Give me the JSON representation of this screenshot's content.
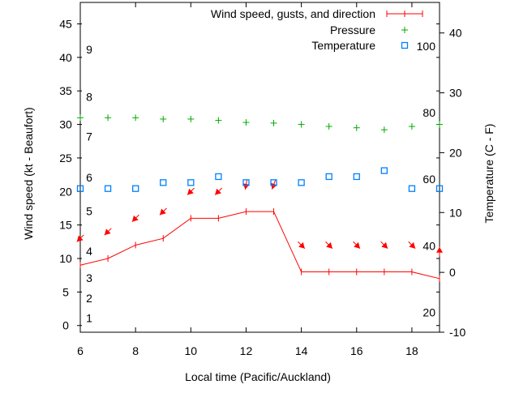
{
  "chart_data": {
    "type": "line",
    "xlabel": "Local time (Pacific/Auckland)",
    "ylabel": "Wind speed (kt - Beaufort)",
    "y2label": "Temperature (C - F)",
    "xlim": [
      6,
      19
    ],
    "ylim": [
      -1,
      48.2
    ],
    "y2lim": [
      -10,
      45.1
    ],
    "x_ticks": [
      6,
      8,
      10,
      12,
      14,
      16,
      18
    ],
    "y_ticks": [
      0,
      5,
      10,
      15,
      20,
      25,
      30,
      35,
      40,
      45
    ],
    "y2_ticks": [
      -10,
      0,
      10,
      20,
      30,
      40
    ],
    "beaufort_labels": [
      {
        "label": "1",
        "kt": 1.1
      },
      {
        "label": "2",
        "kt": 4.1
      },
      {
        "label": "3",
        "kt": 7.1
      },
      {
        "label": "4",
        "kt": 11.1
      },
      {
        "label": "5",
        "kt": 17.1
      },
      {
        "label": "6",
        "kt": 22.1
      },
      {
        "label": "7",
        "kt": 28.2
      },
      {
        "label": "8",
        "kt": 34.1
      },
      {
        "label": "9",
        "kt": 41.2
      }
    ],
    "fahrenheit_labels": [
      {
        "label": "100",
        "f": 100
      },
      {
        "label": "80",
        "f": 80
      },
      {
        "label": "60",
        "f": 60
      },
      {
        "label": "40",
        "f": 40
      },
      {
        "label": "20",
        "f": 20
      }
    ],
    "legend": {
      "placement": "top-right",
      "entries": [
        "Wind speed, gusts, and direction",
        "Pressure",
        "Temperature"
      ]
    },
    "x": [
      6,
      7,
      8,
      9,
      10,
      11,
      12,
      13,
      14,
      15,
      16,
      17,
      18,
      19
    ],
    "series": [
      {
        "name": "Wind speed, gusts, and direction",
        "axis": "y",
        "color": "#ff0000",
        "values": [
          9,
          10,
          12,
          13,
          16,
          16,
          17,
          17,
          8,
          8,
          8,
          8,
          8,
          7
        ],
        "gusts": [
          13,
          14,
          16,
          17,
          20,
          20,
          21,
          21,
          12,
          12,
          12,
          12,
          12,
          11
        ],
        "direction_deg": [
          45,
          45,
          45,
          45,
          45,
          45,
          10,
          20,
          315,
          315,
          315,
          315,
          315,
          180
        ]
      },
      {
        "name": "Pressure",
        "axis": "y",
        "color": "#00aa00",
        "values": [
          31,
          31,
          31,
          30.8,
          30.8,
          30.6,
          30.3,
          30.2,
          30.0,
          29.7,
          29.5,
          29.2,
          29.7,
          30.0
        ]
      },
      {
        "name": "Temperature",
        "axis": "y2",
        "color": "#0080ff",
        "values": [
          14,
          14,
          14,
          15,
          15,
          16,
          15,
          15,
          15,
          16,
          16,
          17,
          14,
          14
        ]
      }
    ]
  }
}
